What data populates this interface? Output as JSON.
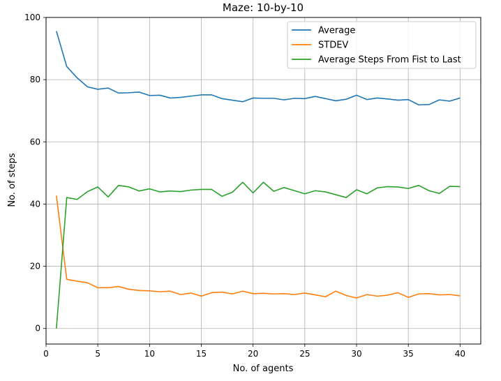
{
  "chart_data": {
    "type": "line",
    "title": "Maze: 10-by-10",
    "xlabel": "No. of agents",
    "ylabel": "No. of steps",
    "xlim": [
      0,
      42
    ],
    "ylim": [
      -5,
      100
    ],
    "xticks": [
      0,
      5,
      10,
      15,
      20,
      25,
      30,
      35,
      40
    ],
    "yticks": [
      0,
      20,
      40,
      60,
      80,
      100
    ],
    "grid": true,
    "legend_position": "upper right",
    "x": [
      1,
      2,
      3,
      4,
      5,
      6,
      7,
      8,
      9,
      10,
      11,
      12,
      13,
      14,
      15,
      16,
      17,
      18,
      19,
      20,
      21,
      22,
      23,
      24,
      25,
      26,
      27,
      28,
      29,
      30,
      31,
      32,
      33,
      34,
      35,
      36,
      37,
      38,
      39,
      40
    ],
    "series": [
      {
        "name": "Average",
        "color": "#1f77b4",
        "values": [
          95.6,
          84.2,
          80.6,
          77.7,
          76.9,
          77.3,
          75.7,
          75.8,
          76.0,
          74.9,
          75.0,
          74.1,
          74.3,
          74.7,
          75.1,
          75.1,
          73.9,
          73.4,
          72.9,
          74.1,
          74.0,
          74.0,
          73.5,
          74.0,
          73.9,
          74.6,
          73.9,
          73.2,
          73.7,
          75.0,
          73.6,
          74.1,
          73.8,
          73.4,
          73.6,
          71.9,
          72.0,
          73.5,
          73.1,
          74.1
        ]
      },
      {
        "name": "STDEV",
        "color": "#ff7f0e",
        "values": [
          42.7,
          15.8,
          15.2,
          14.7,
          13.1,
          13.1,
          13.5,
          12.6,
          12.2,
          12.1,
          11.8,
          12.0,
          10.9,
          11.4,
          10.4,
          11.5,
          11.7,
          11.1,
          12.0,
          11.2,
          11.3,
          11.1,
          11.2,
          10.9,
          11.4,
          10.8,
          10.2,
          12.0,
          10.6,
          9.8,
          10.9,
          10.4,
          10.7,
          11.5,
          10.0,
          11.1,
          11.2,
          10.8,
          10.9,
          10.5
        ]
      },
      {
        "name": "Average Steps From Fist to Last",
        "color": "#2ca02c",
        "values": [
          0,
          42.1,
          41.5,
          44.0,
          45.5,
          42.3,
          46.0,
          45.5,
          44.2,
          44.9,
          43.9,
          44.2,
          44.0,
          44.5,
          44.7,
          44.7,
          42.5,
          43.8,
          47.0,
          43.6,
          47.0,
          44.1,
          45.3,
          44.3,
          43.3,
          44.3,
          43.9,
          43.0,
          42.1,
          44.6,
          43.3,
          45.2,
          45.6,
          45.5,
          45.0,
          46.0,
          44.3,
          43.4,
          45.7,
          45.6
        ]
      }
    ]
  }
}
